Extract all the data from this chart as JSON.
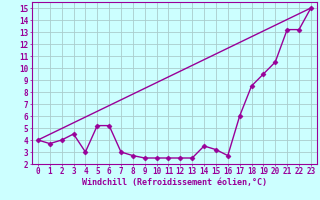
{
  "xlabel": "Windchill (Refroidissement éolien,°C)",
  "background_color": "#ccffff",
  "line_color": "#990099",
  "xlim": [
    -0.5,
    23.5
  ],
  "ylim": [
    2,
    15.5
  ],
  "xticks": [
    0,
    1,
    2,
    3,
    4,
    5,
    6,
    7,
    8,
    9,
    10,
    11,
    12,
    13,
    14,
    15,
    16,
    17,
    18,
    19,
    20,
    21,
    22,
    23
  ],
  "yticks": [
    2,
    3,
    4,
    5,
    6,
    7,
    8,
    9,
    10,
    11,
    12,
    13,
    14,
    15
  ],
  "series1_x": [
    0,
    1,
    2,
    3,
    4,
    5,
    6,
    7,
    8,
    9,
    10,
    11,
    12,
    13,
    14,
    15,
    16,
    17,
    18,
    19,
    20,
    21,
    22,
    23
  ],
  "series1_y": [
    4.0,
    3.7,
    4.0,
    4.5,
    3.0,
    5.2,
    5.2,
    3.0,
    2.7,
    2.5,
    2.5,
    2.5,
    2.5,
    2.5,
    3.5,
    3.2,
    2.7,
    6.0,
    8.5,
    9.5,
    10.5,
    13.2,
    13.2,
    15.0
  ],
  "series2_x": [
    0,
    23
  ],
  "series2_y": [
    4.0,
    15.0
  ],
  "grid_color": "#aacccc",
  "marker": "D",
  "marker_size": 2.5,
  "linewidth": 1.0,
  "tick_fontsize": 5.5,
  "xlabel_fontsize": 6.0
}
